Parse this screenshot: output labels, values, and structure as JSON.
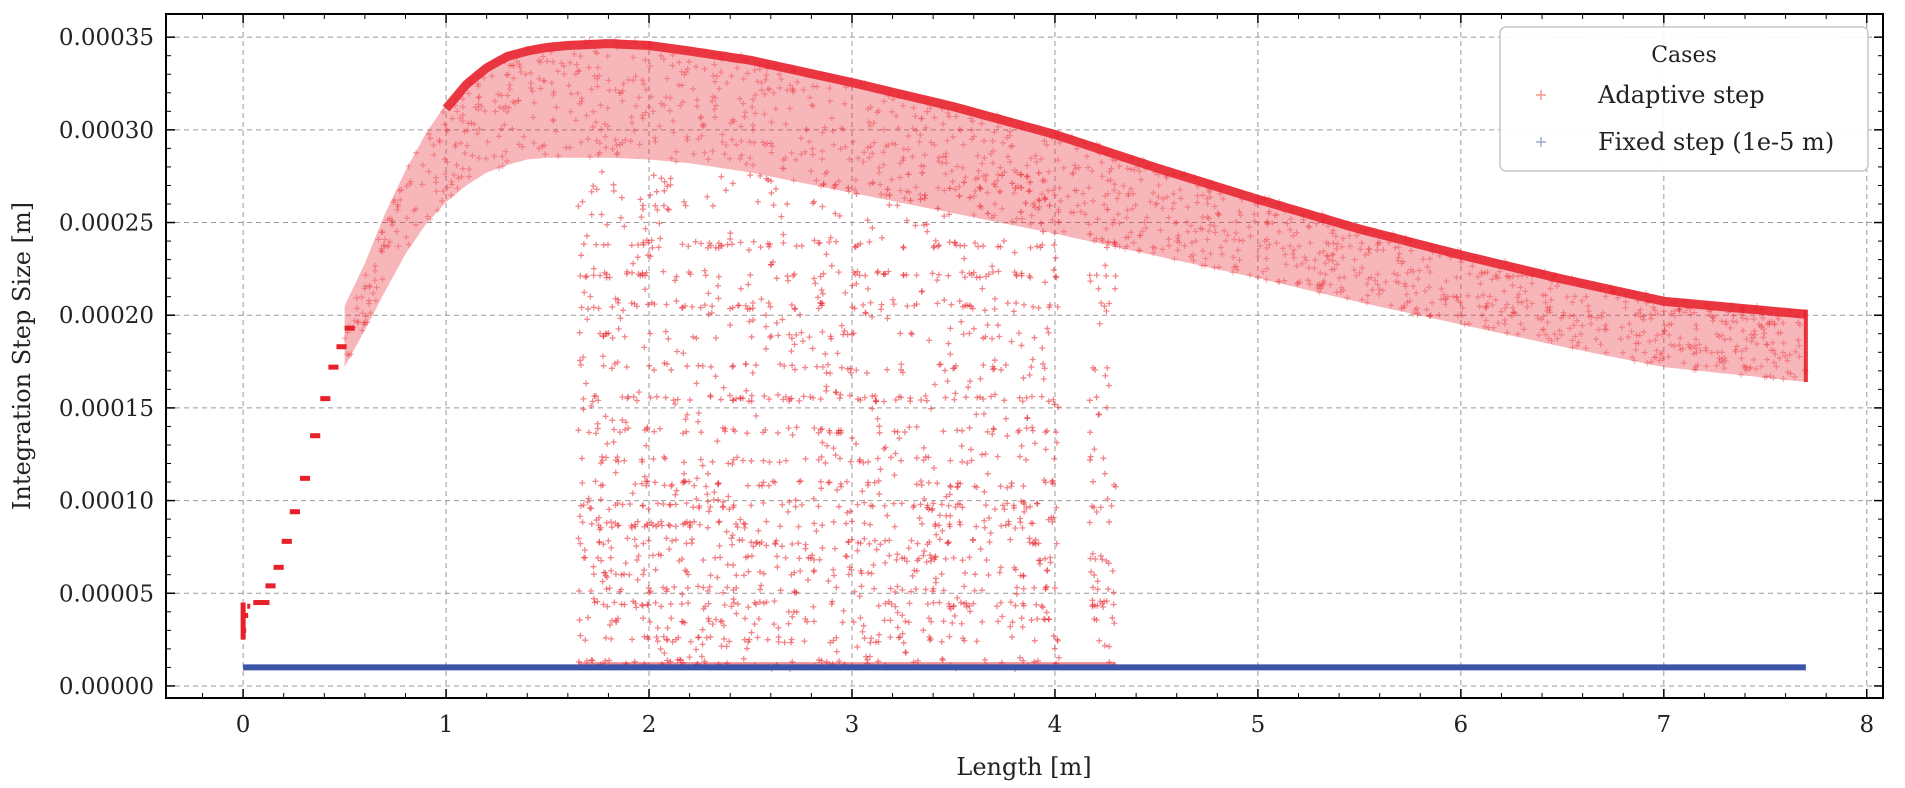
{
  "chart_data": {
    "type": "scatter",
    "title": "",
    "xlabel": "Length [m]",
    "ylabel": "Integration Step Size [m]",
    "xlim": [
      -0.38,
      8.08
    ],
    "ylim": [
      -6.5e-06,
      0.0003625
    ],
    "grid": true,
    "x_ticks": [
      0,
      1,
      2,
      3,
      4,
      5,
      6,
      7,
      8
    ],
    "x_tick_labels": [
      "0",
      "1",
      "2",
      "3",
      "4",
      "5",
      "6",
      "7",
      "8"
    ],
    "y_ticks": [
      0,
      5e-05,
      0.0001,
      0.00015,
      0.0002,
      0.00025,
      0.0003,
      0.00035
    ],
    "y_tick_labels": [
      "0.00000",
      "0.00005",
      "0.00010",
      "0.00015",
      "0.00020",
      "0.00025",
      "0.00030",
      "0.00035"
    ],
    "legend": {
      "title": "Cases",
      "position": "top-right",
      "entries": [
        "Adaptive step",
        "Fixed step (1e-5 m)"
      ]
    },
    "series": [
      {
        "name": "Adaptive step",
        "color": "#e8202a",
        "marker": "+",
        "band_upper_x": [
          0.5,
          0.6,
          0.7,
          0.8,
          0.9,
          1.0,
          1.1,
          1.2,
          1.3,
          1.4,
          1.5,
          1.6,
          1.8,
          2.0,
          2.2,
          2.5,
          3.0,
          3.5,
          4.0,
          4.5,
          5.0,
          5.5,
          6.0,
          6.5,
          7.0,
          7.7
        ],
        "band_upper_y": [
          0.000205,
          0.000228,
          0.000255,
          0.000278,
          0.000298,
          0.000314,
          0.000327,
          0.000336,
          0.000342,
          0.000345,
          0.000347,
          0.000348,
          0.000349,
          0.000348,
          0.000345,
          0.00034,
          0.000328,
          0.000315,
          0.0003,
          0.000282,
          0.000265,
          0.000249,
          0.000235,
          0.000222,
          0.00021,
          0.000203
        ],
        "band_lower_x": [
          0.5,
          0.6,
          0.7,
          0.8,
          0.9,
          1.0,
          1.1,
          1.2,
          1.3,
          1.4,
          1.5,
          1.6,
          1.8,
          2.0,
          2.2,
          2.5,
          3.0,
          3.5,
          4.0,
          4.5,
          5.0,
          5.5,
          6.0,
          6.5,
          7.0,
          7.7
        ],
        "band_lower_y": [
          0.000172,
          0.000192,
          0.000213,
          0.000233,
          0.000249,
          0.000261,
          0.00027,
          0.000277,
          0.000281,
          0.000284,
          0.000285,
          0.000285,
          0.000285,
          0.000284,
          0.000282,
          0.000277,
          0.000266,
          0.000255,
          0.000244,
          0.000232,
          0.00022,
          0.000207,
          0.000195,
          0.000183,
          0.000172,
          0.000164
        ],
        "ramp_x": [
          0.0,
          0.01,
          0.02,
          0.05,
          0.08,
          0.11,
          0.15,
          0.19,
          0.23,
          0.28,
          0.33,
          0.38,
          0.42,
          0.46,
          0.5
        ],
        "ramp_y": [
          3e-05,
          3.8e-05,
          4.3e-05,
          4.5e-05,
          4.5e-05,
          5.4e-05,
          6.4e-05,
          7.8e-05,
          9.4e-05,
          0.000112,
          0.000135,
          0.000155,
          0.000172,
          0.000183,
          0.000193
        ],
        "scatter_region_x": [
          1.65,
          4.3
        ],
        "scatter_levels_y": [
          1.25e-05,
          2.5e-05,
          3.5e-05,
          4.4e-05,
          5.2e-05,
          6.1e-05,
          6.9e-05,
          7.8e-05,
          8.7e-05,
          9.7e-05,
          0.000109,
          0.000122,
          0.000138,
          0.000155,
          0.000172,
          0.000189,
          0.000205,
          0.000222,
          0.000238
        ]
      },
      {
        "name": "Fixed step (1e-5 m)",
        "color": "#3b55a8",
        "marker": "+",
        "x": [
          0,
          7.7
        ],
        "y": [
          1e-05,
          1e-05
        ]
      }
    ]
  }
}
